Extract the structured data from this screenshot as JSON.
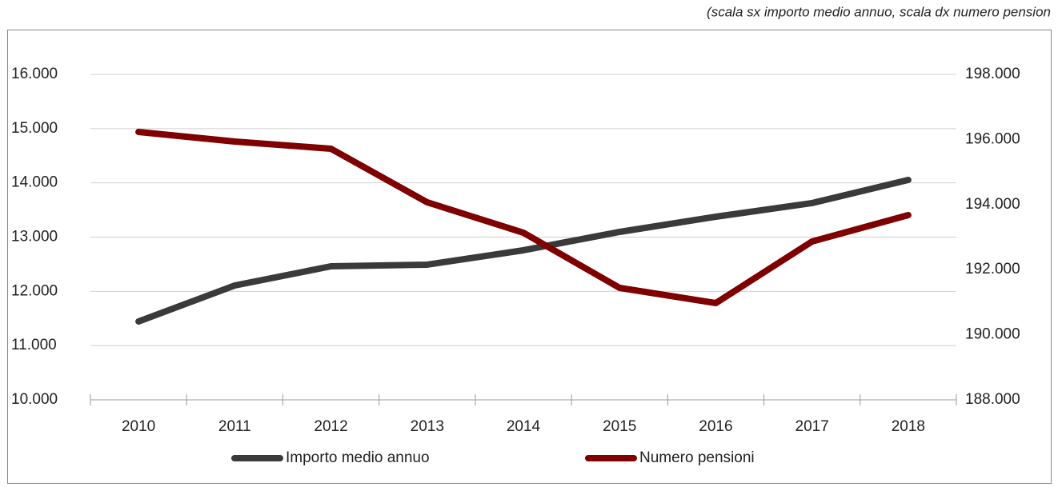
{
  "chart_data": {
    "type": "line",
    "note": "(scala sx importo medio annuo, scala dx numero pension",
    "categories": [
      "2010",
      "2011",
      "2012",
      "2013",
      "2014",
      "2015",
      "2016",
      "2017",
      "2018"
    ],
    "series": [
      {
        "name": "Importo medio annuo",
        "color": "#3a3a3a",
        "values": [
          11445,
          12108,
          12462,
          12492,
          12757,
          13096,
          13376,
          13627,
          14054
        ]
      },
      {
        "name": "Numero pensioni",
        "color": "#7f0000",
        "axis": "y2",
        "values": [
          196231,
          195936,
          195715,
          194069,
          193135,
          191440,
          190973,
          192865,
          193676
        ]
      }
    ],
    "ylim": [
      10000,
      16000
    ],
    "yticks": [
      {
        "value": 10000,
        "label": "10.000"
      },
      {
        "value": 11000,
        "label": "11.000"
      },
      {
        "value": 12000,
        "label": "12.000"
      },
      {
        "value": 13000,
        "label": "13.000"
      },
      {
        "value": 14000,
        "label": "14.000"
      },
      {
        "value": 15000,
        "label": "15.000"
      },
      {
        "value": 16000,
        "label": "16.000"
      }
    ],
    "y2lim": [
      188000,
      198000
    ],
    "y2ticks": [
      {
        "value": 188000,
        "label": "188.000"
      },
      {
        "value": 190000,
        "label": "190.000"
      },
      {
        "value": 192000,
        "label": "192.000"
      },
      {
        "value": 194000,
        "label": "194.000"
      },
      {
        "value": 196000,
        "label": "196.000"
      },
      {
        "value": 198000,
        "label": "198.000"
      }
    ],
    "grid": true,
    "legend": "bottom"
  }
}
